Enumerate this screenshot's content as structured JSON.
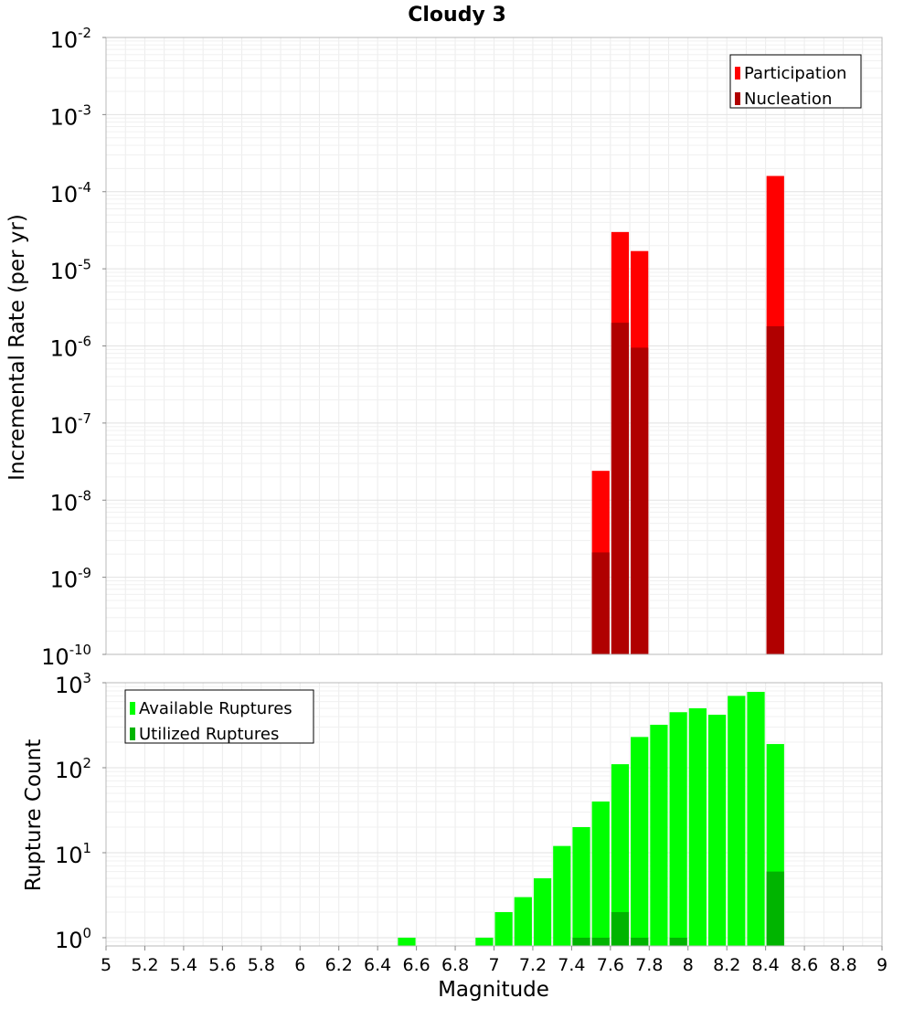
{
  "chart_data": [
    {
      "type": "bar",
      "title": "Cloudy 3",
      "xlabel": "",
      "ylabel": "Incremental Rate (per yr)",
      "yscale": "log",
      "xlim": [
        5,
        9
      ],
      "ylim": [
        1e-10,
        0.01
      ],
      "y_ticks": [
        "10-10",
        "10-9",
        "10-8",
        "10-7",
        "10-6",
        "10-5",
        "10-4",
        "10-3",
        "10-2"
      ],
      "grid": true,
      "legend_position": "top-right",
      "bin_width": 0.1,
      "series": [
        {
          "name": "Participation",
          "color": "#ff0000",
          "x": [
            7.55,
            7.65,
            7.75,
            8.45
          ],
          "values": [
            2.4e-08,
            3e-05,
            1.7e-05,
            0.00016
          ]
        },
        {
          "name": "Nucleation",
          "color": "#b00000",
          "x": [
            7.55,
            7.65,
            7.75,
            8.45
          ],
          "values": [
            2.1e-09,
            2e-06,
            9.5e-07,
            1.8e-06
          ]
        }
      ]
    },
    {
      "type": "bar",
      "title": "",
      "xlabel": "Magnitude",
      "ylabel": "Rupture Count",
      "yscale": "log",
      "xlim": [
        5,
        9
      ],
      "ylim": [
        0.8,
        1000
      ],
      "y_ticks": [
        "100",
        "101",
        "102",
        "103"
      ],
      "x_ticks": [
        "5",
        "5.2",
        "5.4",
        "5.6",
        "5.8",
        "6",
        "6.2",
        "6.4",
        "6.6",
        "6.8",
        "7",
        "7.2",
        "7.4",
        "7.6",
        "7.8",
        "8",
        "8.2",
        "8.4",
        "8.6",
        "8.8",
        "9"
      ],
      "grid": true,
      "legend_position": "top-left",
      "bin_width": 0.1,
      "series": [
        {
          "name": "Available Ruptures",
          "color": "#00ff00",
          "x": [
            6.55,
            6.95,
            7.05,
            7.15,
            7.25,
            7.35,
            7.45,
            7.55,
            7.65,
            7.75,
            7.85,
            7.95,
            8.05,
            8.15,
            8.25,
            8.35,
            8.45
          ],
          "values": [
            1,
            1,
            2,
            3,
            5,
            12,
            20,
            40,
            110,
            230,
            320,
            450,
            500,
            420,
            700,
            780,
            190
          ]
        },
        {
          "name": "Utilized Ruptures",
          "color": "#00b400",
          "x": [
            7.45,
            7.55,
            7.65,
            7.75,
            7.95,
            8.45
          ],
          "values": [
            1,
            1,
            2,
            1,
            1,
            6
          ]
        }
      ]
    }
  ]
}
